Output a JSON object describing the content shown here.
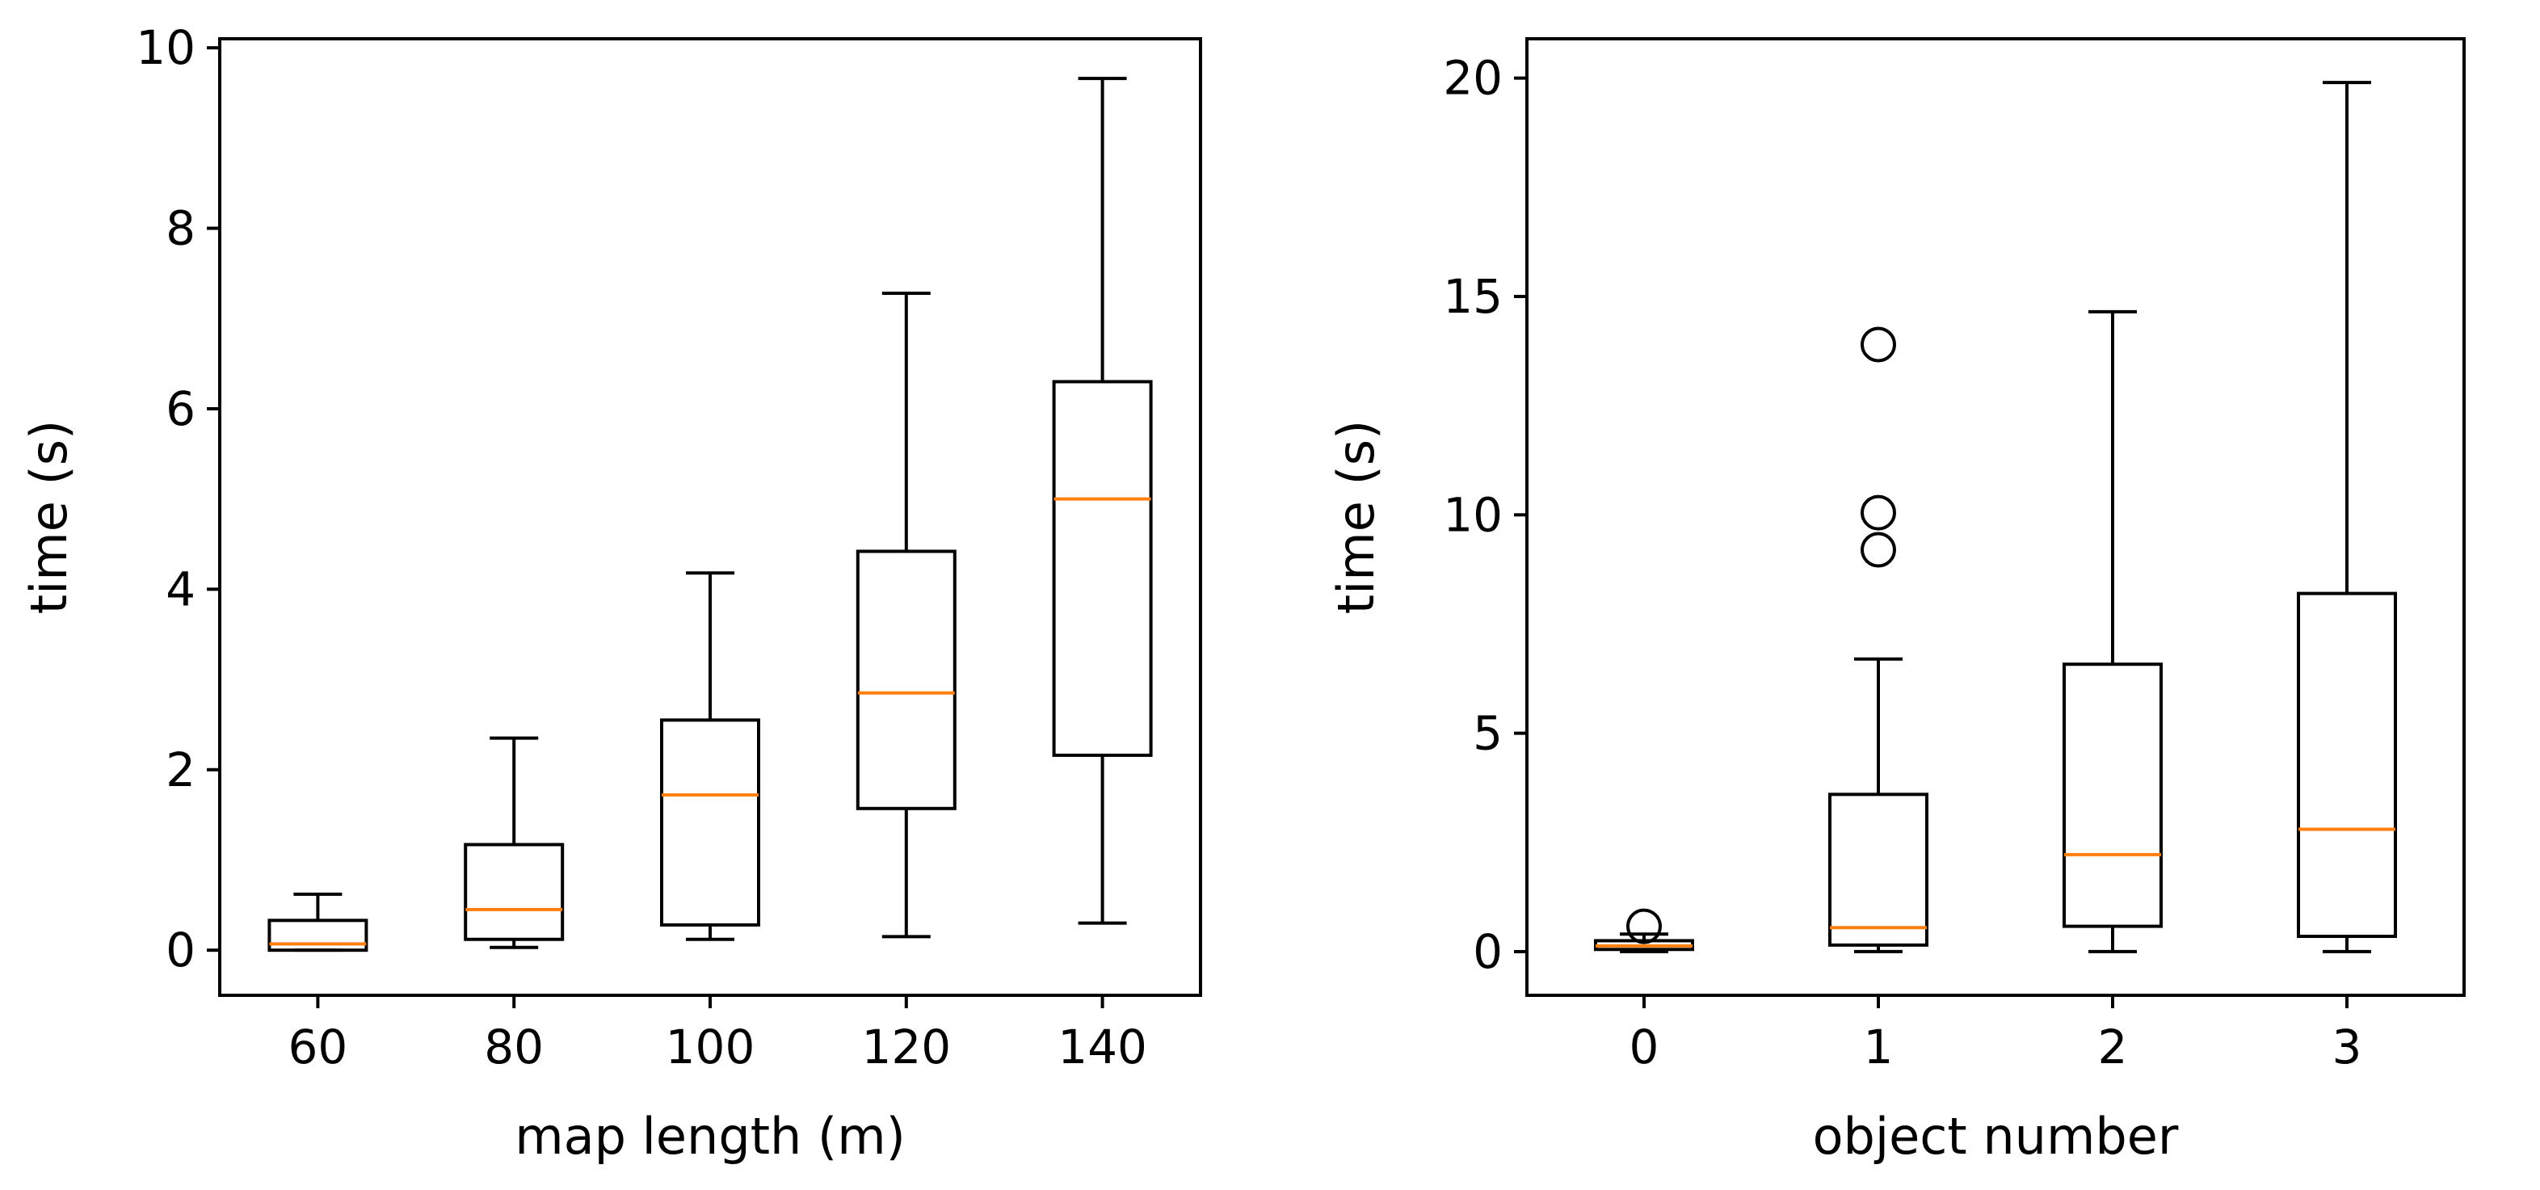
{
  "chart_data": [
    {
      "type": "boxplot",
      "id": "left",
      "xlabel": "map length (m)",
      "ylabel": "time (s)",
      "ylim": [
        -0.5,
        10.1
      ],
      "yticks": [
        0,
        2,
        4,
        6,
        8,
        10
      ],
      "categories": [
        "60",
        "80",
        "100",
        "120",
        "140"
      ],
      "boxes": [
        {
          "whisker_low": 0.0,
          "q1": 0.0,
          "median": 0.07,
          "q3": 0.33,
          "whisker_high": 0.62,
          "outliers": []
        },
        {
          "whisker_low": 0.03,
          "q1": 0.12,
          "median": 0.45,
          "q3": 1.17,
          "whisker_high": 2.35,
          "outliers": []
        },
        {
          "whisker_low": 0.12,
          "q1": 0.28,
          "median": 1.72,
          "q3": 2.55,
          "whisker_high": 4.18,
          "outliers": []
        },
        {
          "whisker_low": 0.15,
          "q1": 1.57,
          "median": 2.85,
          "q3": 4.42,
          "whisker_high": 7.28,
          "outliers": []
        },
        {
          "whisker_low": 0.3,
          "q1": 2.16,
          "median": 5.0,
          "q3": 6.3,
          "whisker_high": 9.66,
          "outliers": []
        }
      ]
    },
    {
      "type": "boxplot",
      "id": "right",
      "xlabel": "object number",
      "ylabel": "time (s)",
      "ylim": [
        -1.0,
        20.9
      ],
      "yticks": [
        0,
        5,
        10,
        15,
        20
      ],
      "categories": [
        "0",
        "1",
        "2",
        "3"
      ],
      "boxes": [
        {
          "whisker_low": 0.0,
          "q1": 0.05,
          "median": 0.13,
          "q3": 0.25,
          "whisker_high": 0.4,
          "outliers": [
            0.58
          ]
        },
        {
          "whisker_low": 0.0,
          "q1": 0.15,
          "median": 0.55,
          "q3": 3.6,
          "whisker_high": 6.7,
          "outliers": [
            9.2,
            10.05,
            13.9
          ]
        },
        {
          "whisker_low": 0.0,
          "q1": 0.58,
          "median": 2.22,
          "q3": 6.58,
          "whisker_high": 14.65,
          "outliers": []
        },
        {
          "whisker_low": 0.0,
          "q1": 0.35,
          "median": 2.8,
          "q3": 8.2,
          "whisker_high": 19.9,
          "outliers": []
        }
      ]
    }
  ],
  "colors": {
    "box": "#000000",
    "median": "#ff7f0e",
    "background": "#ffffff"
  }
}
